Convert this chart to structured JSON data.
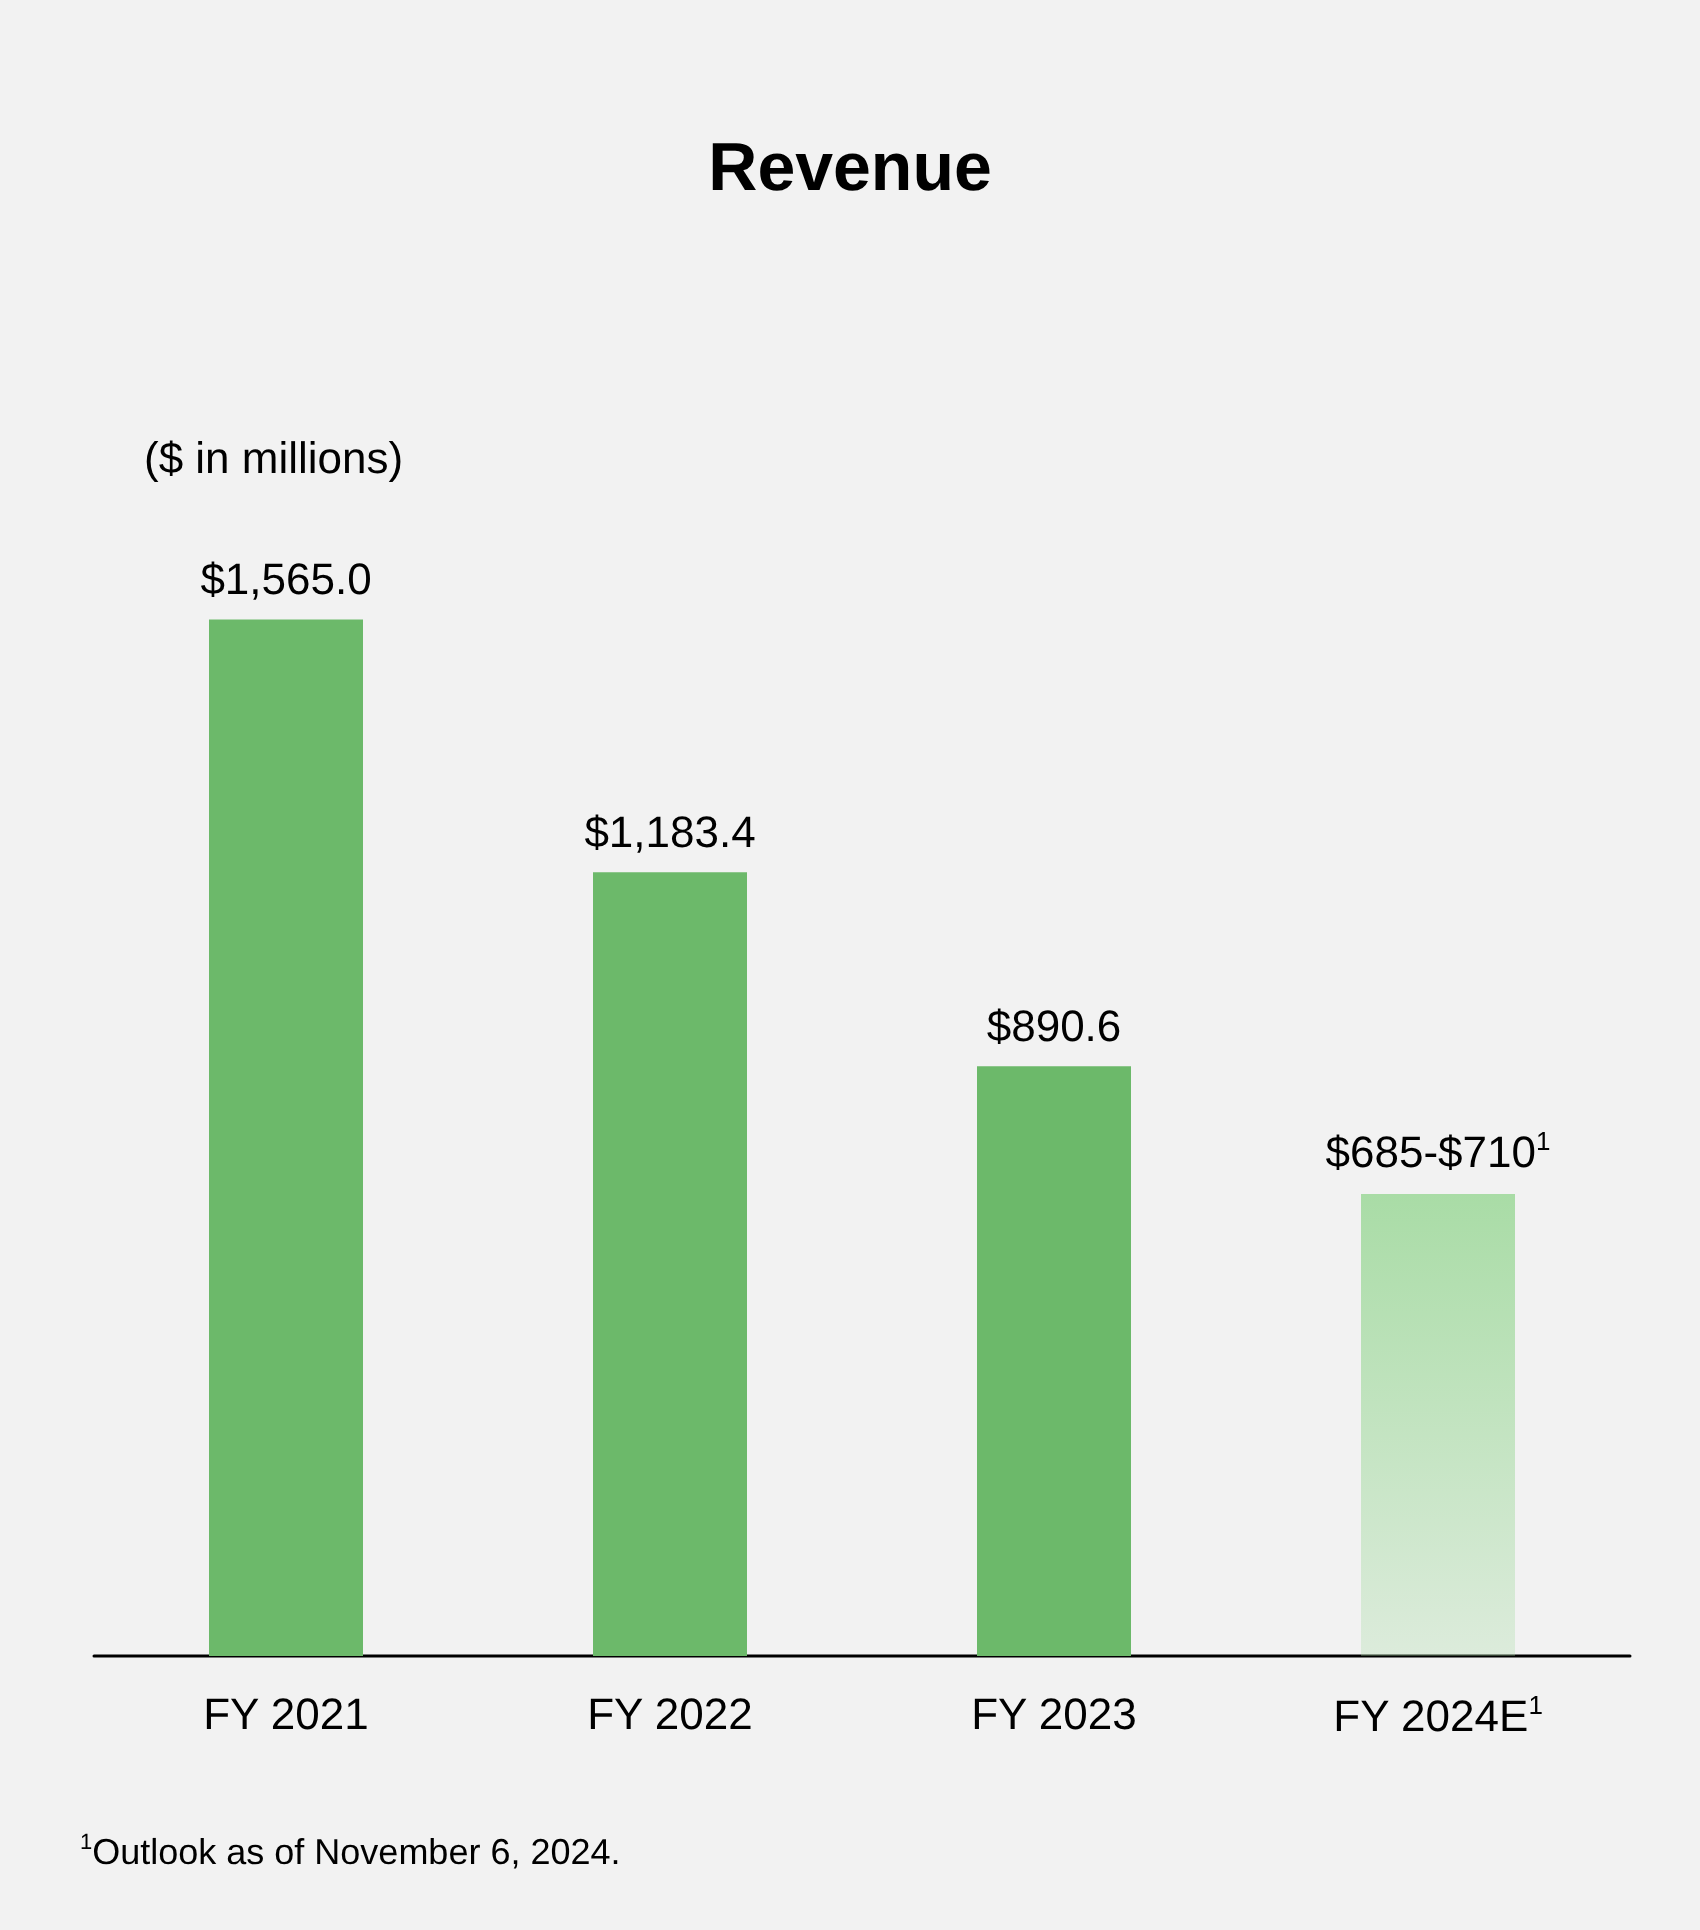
{
  "chart_data": {
    "type": "bar",
    "title": "Revenue",
    "categories": [
      "FY 2021",
      "FY 2022",
      "FY 2023",
      "FY 2024E$^{1}$"
    ],
    "values": [
      1565.0,
      1183.4,
      890.6,
      697.5
    ],
    "value_labels": [
      "$1,565.0",
      "$1,183.4",
      "$890.6",
      "$685-$710$^{1}$"
    ],
    "colors": [
      "#6cb96a",
      "#6cb96a",
      "#6cb96a",
      "#a9dca6"
    ],
    "annotations": [
      "($ in millions)",
      "$^{1}$Outlook as of November 6, 2024."
    ]
  }
}
